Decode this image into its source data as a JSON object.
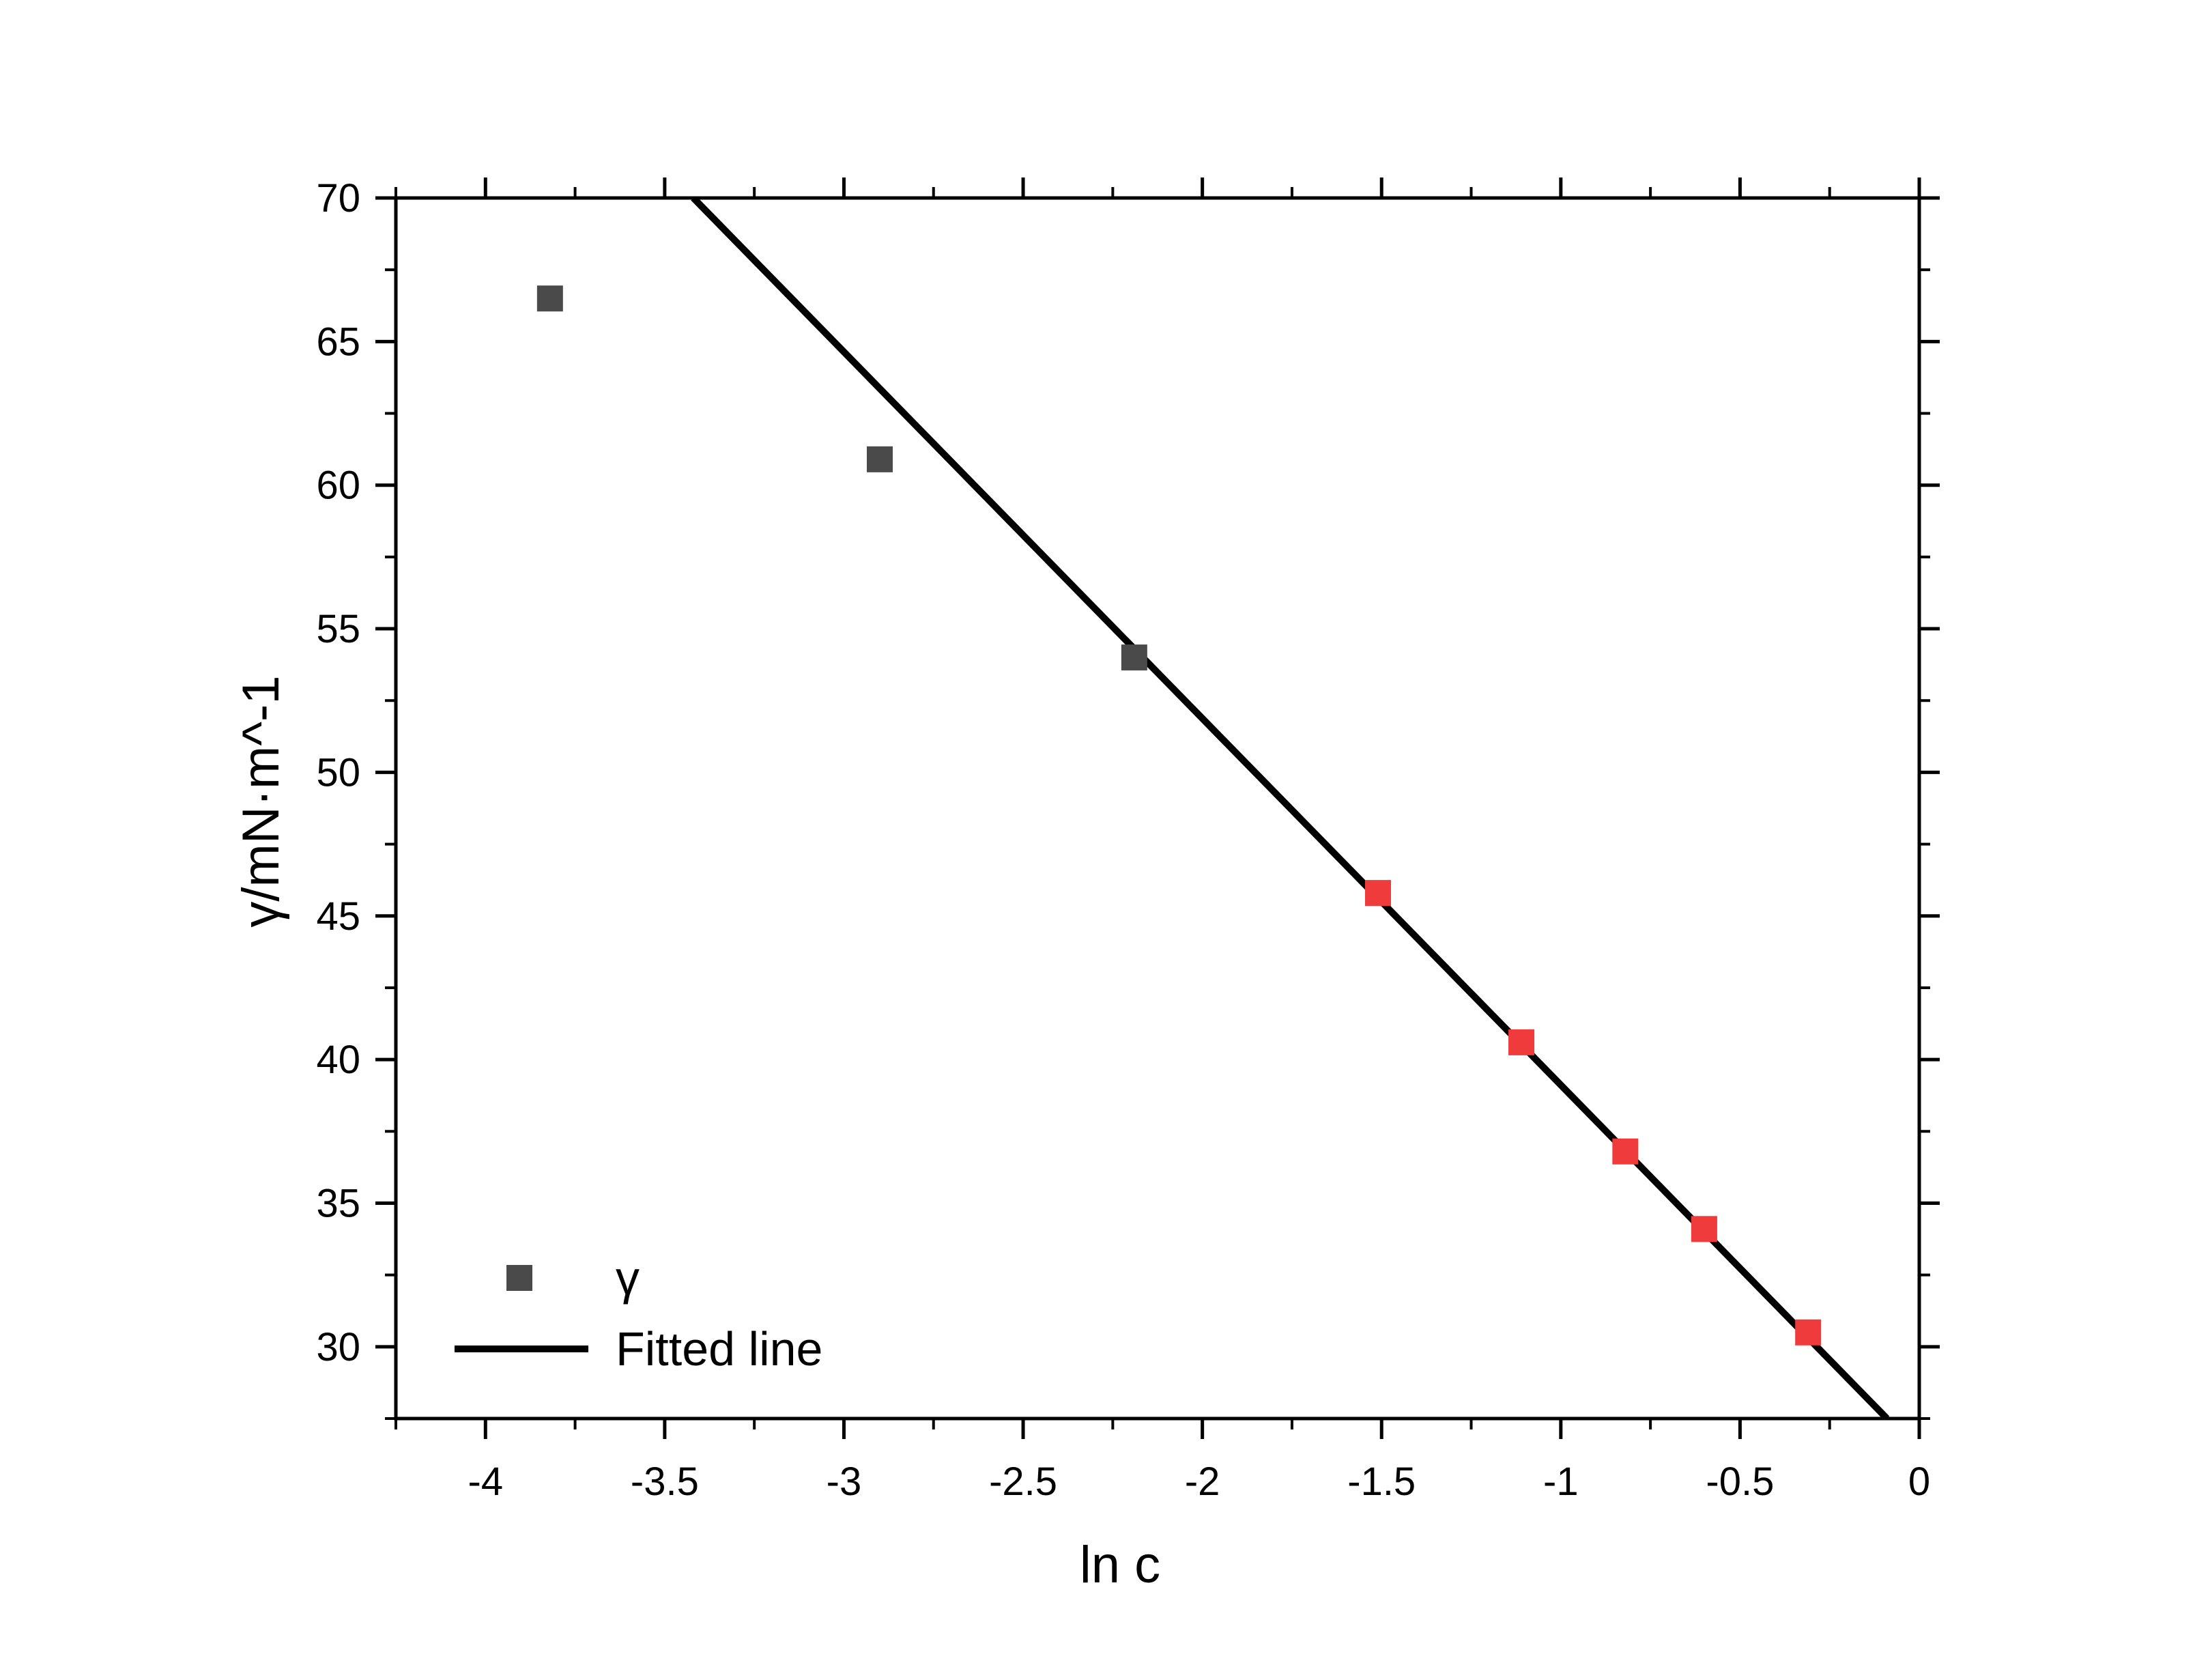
{
  "chart_data": {
    "type": "scatter",
    "title": "",
    "xlabel": "ln c",
    "ylabel": "γ/mN·m^-1",
    "xlim": [
      -4.25,
      0
    ],
    "ylim": [
      27.5,
      70
    ],
    "x_ticks": [
      -4,
      -3.5,
      -3,
      -2.5,
      -2,
      -1.5,
      -1,
      -0.5,
      0
    ],
    "x_tick_labels": [
      "-4",
      "-3.5",
      "-3",
      "-2.5",
      "-2",
      "-1.5",
      "-1",
      "-0.5",
      "0"
    ],
    "y_ticks": [
      30,
      35,
      40,
      45,
      50,
      55,
      60,
      65,
      70
    ],
    "y_tick_labels": [
      "30",
      "35",
      "40",
      "45",
      "50",
      "55",
      "60",
      "65",
      "70"
    ],
    "grid": false,
    "legend_position": "bottom-left",
    "series": [
      {
        "name": "γ",
        "kind": "scatter",
        "marker": "square",
        "color": "#4a4a4a",
        "points": [
          {
            "x": -3.82,
            "y": 66.5
          },
          {
            "x": -2.9,
            "y": 60.9
          },
          {
            "x": -2.19,
            "y": 54.0
          }
        ]
      },
      {
        "name": "",
        "kind": "scatter",
        "marker": "square",
        "color": "#ef3b3b",
        "points": [
          {
            "x": -1.51,
            "y": 45.8
          },
          {
            "x": -1.11,
            "y": 40.6
          },
          {
            "x": -0.82,
            "y": 36.8
          },
          {
            "x": -0.6,
            "y": 34.1
          },
          {
            "x": -0.31,
            "y": 30.5
          }
        ]
      },
      {
        "name": "Fitted line",
        "kind": "line",
        "color": "#000000",
        "points": [
          {
            "x": -3.42,
            "y": 70.0
          },
          {
            "x": -0.09,
            "y": 27.5
          }
        ]
      }
    ]
  }
}
